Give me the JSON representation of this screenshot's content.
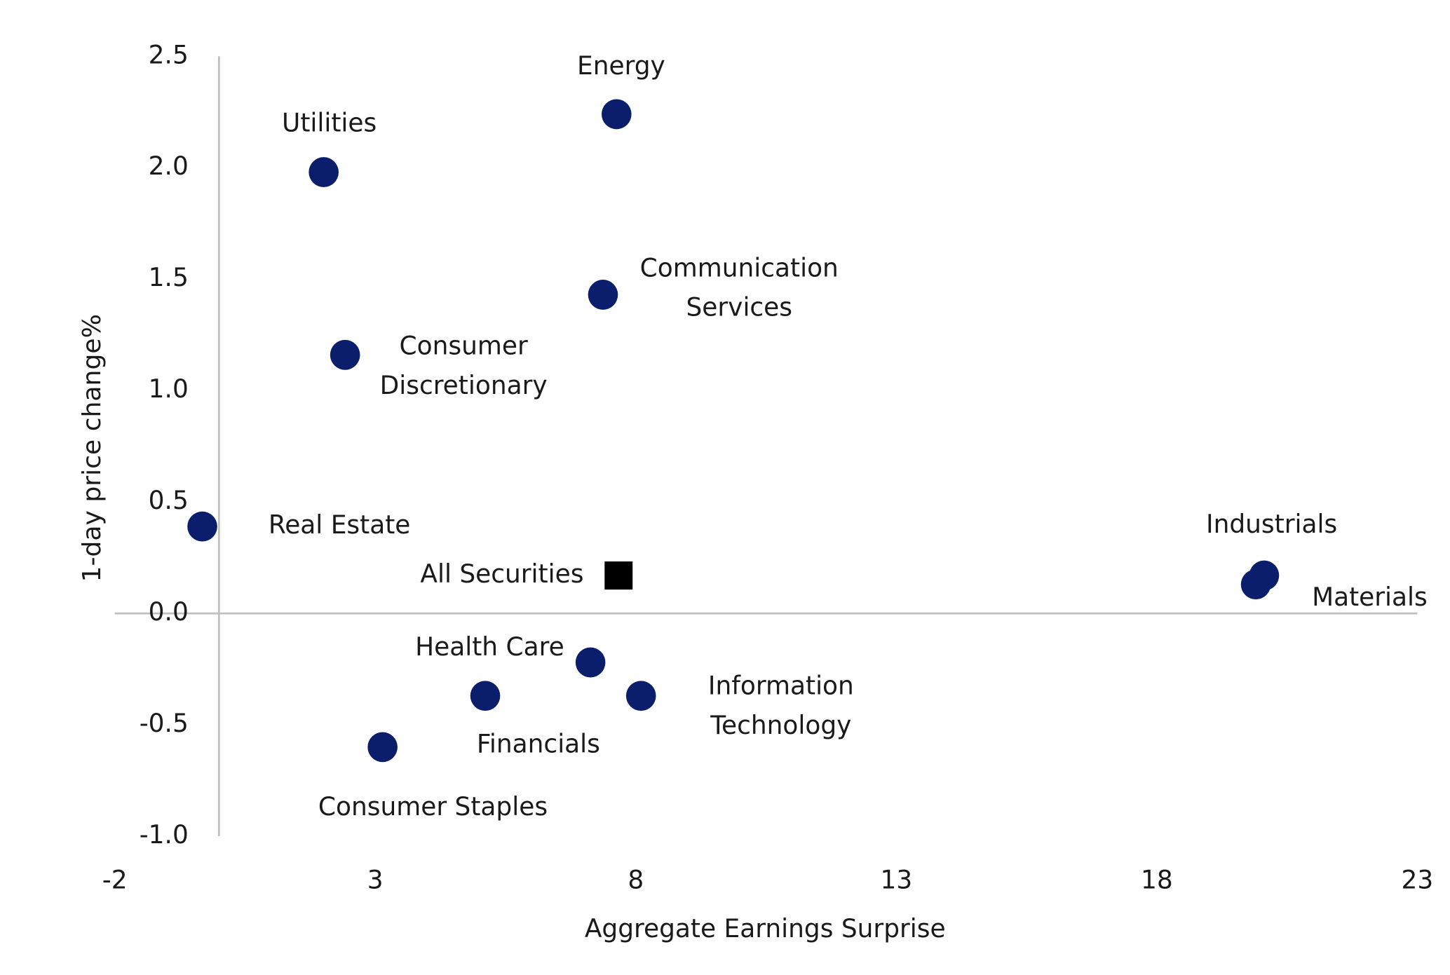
{
  "chart_data": {
    "type": "scatter",
    "x_label": "Aggregate Earnings Surprise",
    "y_label": "1-day price change%",
    "xlim": [
      -2,
      23
    ],
    "xticks": [
      -2,
      3,
      8,
      13,
      18,
      23
    ],
    "ylim": [
      -1,
      2.5
    ],
    "yticks": [
      {
        "value": -1,
        "label": "-1.0"
      },
      -0.5,
      {
        "value": 0,
        "label": "0.0"
      },
      0.5,
      {
        "value": 1,
        "label": "1.0"
      },
      1.5,
      {
        "value": 2,
        "label": "2.0"
      },
      2.5
    ],
    "color": "#0b1e6b",
    "highlight_color": "#000000",
    "points": [
      {
        "label": [
          "Energy"
        ],
        "x": 7.63,
        "y": 2.24
      },
      {
        "label": [
          "Utilities"
        ],
        "x": 2.01,
        "y": 1.98
      },
      {
        "label": [
          "Communication",
          "Services"
        ],
        "x": 7.37,
        "y": 1.43
      },
      {
        "label": [
          "Consumer",
          "Discretionary"
        ],
        "x": 2.42,
        "y": 1.16
      },
      {
        "label": [
          "Real Estate"
        ],
        "x": -0.32,
        "y": 0.39
      },
      {
        "label": [
          "All Securities"
        ],
        "x": 7.67,
        "y": 0.17,
        "marker": "square"
      },
      {
        "label": [
          "Industrials"
        ],
        "x": 20.06,
        "y": 0.17
      },
      {
        "label": [
          "Materials"
        ],
        "x": 19.9,
        "y": 0.13
      },
      {
        "label": [
          "Health Care"
        ],
        "x": 7.13,
        "y": -0.22
      },
      {
        "label": [
          "Financials"
        ],
        "x": 5.11,
        "y": -0.37
      },
      {
        "label": [
          "Information",
          "Technology"
        ],
        "x": 8.1,
        "y": -0.37
      },
      {
        "label": [
          "Consumer Staples"
        ],
        "x": 3.14,
        "y": -0.6
      }
    ]
  }
}
